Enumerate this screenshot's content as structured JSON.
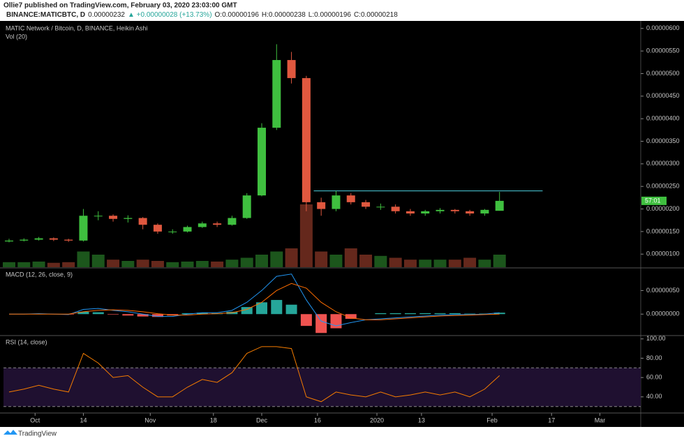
{
  "header": {
    "author_line": "Ollie7 published on TradingView.com, February 03, 2020 23:03:00 GMT",
    "symbol": "BINANCE:MATICBTC, D",
    "last": "0.00000232",
    "change": "▲ +0.00000028 (+13.73%)",
    "ohlc": [
      "O:0.00000196",
      "H:0.00000238",
      "L:0.00000196",
      "C:0.00000218"
    ]
  },
  "footer": {
    "brand": "TradingView"
  },
  "chart_data": [
    {
      "type": "candlestick",
      "title": "MATIC Network / Bitcoin, D, BINANCE, Heikin Ashi",
      "up_color": "#3fbf3f",
      "down_color": "#e0583f",
      "open": [
        1.28e-06,
        1.3e-06,
        1.32e-06,
        1.35e-06,
        1.32e-06,
        1.3e-06,
        1.85e-06,
        1.85e-06,
        1.78e-06,
        1.8e-06,
        1.65e-06,
        1.5e-06,
        1.5e-06,
        1.6e-06,
        1.68e-06,
        1.65e-06,
        1.8e-06,
        2.3e-06,
        3.8e-06,
        5.3e-06,
        4.9e-06,
        2.15e-06,
        2e-06,
        2.3e-06,
        2.15e-06,
        2.05e-06,
        2.05e-06,
        1.95e-06,
        1.9e-06,
        1.95e-06,
        1.98e-06,
        1.95e-06,
        1.9e-06,
        1.96e-06
      ],
      "high": [
        1.34e-06,
        1.35e-06,
        1.38e-06,
        1.37e-06,
        1.34e-06,
        2e-06,
        1.95e-06,
        1.88e-06,
        1.86e-06,
        1.82e-06,
        1.68e-06,
        1.55e-06,
        1.63e-06,
        1.72e-06,
        1.72e-06,
        1.85e-06,
        2.35e-06,
        3.9e-06,
        5.65e-06,
        5.48e-06,
        4.95e-06,
        2.25e-06,
        2.4e-06,
        2.35e-06,
        2.2e-06,
        2.12e-06,
        2.1e-06,
        2e-06,
        1.98e-06,
        2.02e-06,
        2e-06,
        1.98e-06,
        2e-06,
        2.38e-06
      ],
      "low": [
        1.26e-06,
        1.28e-06,
        1.3e-06,
        1.29e-06,
        1.27e-06,
        1.28e-06,
        1.75e-06,
        1.72e-06,
        1.7e-06,
        1.55e-06,
        1.45e-06,
        1.45e-06,
        1.48e-06,
        1.58e-06,
        1.6e-06,
        1.63e-06,
        1.78e-06,
        2.28e-06,
        3.75e-06,
        4.78e-06,
        1.95e-06,
        1.85e-06,
        1.95e-06,
        2.1e-06,
        2e-06,
        1.98e-06,
        1.9e-06,
        1.85e-06,
        1.85e-06,
        1.9e-06,
        1.9e-06,
        1.85e-06,
        1.85e-06,
        1.96e-06
      ],
      "close": [
        1.3e-06,
        1.32e-06,
        1.35e-06,
        1.32e-06,
        1.3e-06,
        1.85e-06,
        1.85e-06,
        1.78e-06,
        1.8e-06,
        1.65e-06,
        1.5e-06,
        1.5e-06,
        1.6e-06,
        1.68e-06,
        1.65e-06,
        1.8e-06,
        2.3e-06,
        3.8e-06,
        5.3e-06,
        4.9e-06,
        2.15e-06,
        2e-06,
        2.3e-06,
        2.15e-06,
        2.05e-06,
        2.05e-06,
        1.95e-06,
        1.9e-06,
        1.95e-06,
        1.98e-06,
        1.95e-06,
        1.9e-06,
        1.98e-06,
        2.18e-06
      ],
      "volume": {
        "name": "Vol (20)",
        "ylim": [
          0,
          100
        ],
        "values": [
          8,
          8,
          9,
          7,
          8,
          25,
          20,
          12,
          10,
          12,
          10,
          8,
          9,
          10,
          9,
          12,
          15,
          20,
          25,
          30,
          100,
          25,
          20,
          30,
          20,
          18,
          15,
          12,
          12,
          12,
          12,
          15,
          12,
          20
        ]
      },
      "hline": {
        "value": 2.4e-06,
        "from": 20.5,
        "to": 35.9,
        "color": "#4dd0e1"
      },
      "countdown": "57:01",
      "xlim": [
        -0.375,
        42.5
      ],
      "ylim": [
        7.1e-07,
        6.12e-06
      ],
      "yticks": [
        {
          "value": 1e-06,
          "label": "0.00000100"
        },
        {
          "value": 1.5e-06,
          "label": "0.00000150"
        },
        {
          "value": 2e-06,
          "label": "0.00000200"
        },
        {
          "value": 2.5e-06,
          "label": "0.00000250"
        },
        {
          "value": 3e-06,
          "label": "0.00000300"
        },
        {
          "value": 3.5e-06,
          "label": "0.00000350"
        },
        {
          "value": 4e-06,
          "label": "0.00000400"
        },
        {
          "value": 4.5e-06,
          "label": "0.00000450"
        },
        {
          "value": 5e-06,
          "label": "0.00000500"
        },
        {
          "value": 5.5e-06,
          "label": "0.00000550"
        },
        {
          "value": 6e-06,
          "label": "0.00000600"
        }
      ]
    },
    {
      "type": "macd",
      "title": "MACD (12, 26, close, 9)",
      "series": [
        {
          "name": "MACD",
          "color": "#2196f3",
          "values": [
            0,
            0,
            1e-08,
            0,
            -1e-08,
            1e-07,
            1.2e-07,
            8e-08,
            5e-08,
            0,
            -5e-08,
            -5e-08,
            0,
            3e-08,
            3e-08,
            8e-08,
            2.5e-07,
            5e-07,
            8e-07,
            8.5e-07,
            3e-07,
            -1.5e-07,
            -2.5e-07,
            -1.8e-07,
            -1.2e-07,
            -1e-07,
            -8e-08,
            -6e-08,
            -4e-08,
            -2e-08,
            -1e-08,
            -1e-08,
            0,
            3e-08
          ]
        },
        {
          "name": "Signal",
          "color": "#ff6d00",
          "values": [
            0,
            0,
            0,
            0,
            0,
            5e-08,
            8e-08,
            9e-08,
            8e-08,
            5e-08,
            1e-08,
            -2e-08,
            -2e-08,
            0,
            1e-08,
            3e-08,
            1e-07,
            2.5e-07,
            5e-07,
            6.5e-07,
            5.5e-07,
            2.5e-07,
            5e-08,
            -8e-08,
            -1.2e-07,
            -1.2e-07,
            -1e-07,
            -8e-08,
            -6e-08,
            -4e-08,
            -3e-08,
            -2e-08,
            -1e-08,
            0
          ]
        }
      ],
      "histogram": {
        "up_color": "#26a69a",
        "down_color": "#ef5350",
        "values": [
          0,
          0,
          1e-08,
          0,
          -1e-08,
          5e-08,
          4e-08,
          -1e-08,
          -3e-08,
          -5e-08,
          -6e-08,
          -3e-08,
          2e-08,
          3e-08,
          2e-08,
          5e-08,
          1.5e-07,
          2.5e-07,
          3e-07,
          2e-07,
          -2.5e-07,
          -4e-07,
          -3e-07,
          -1e-07,
          0,
          2e-08,
          2e-08,
          2e-08,
          2e-08,
          2e-08,
          2e-08,
          1e-08,
          1e-08,
          3e-08
        ]
      },
      "xlim": [
        -0.375,
        42.5
      ],
      "ylim": [
        -4.4e-07,
        9.5e-07
      ],
      "yticks": [
        {
          "value": 0,
          "label": "0.00000000"
        },
        {
          "value": 5e-07,
          "label": "0.00000050"
        }
      ]
    },
    {
      "type": "rsi",
      "title": "RSI (14, close)",
      "color": "#f57c00",
      "values": [
        45,
        48,
        52,
        48,
        45,
        85,
        75,
        60,
        62,
        50,
        40,
        40,
        50,
        58,
        55,
        65,
        85,
        92,
        92,
        90,
        40,
        35,
        45,
        42,
        40,
        45,
        40,
        42,
        45,
        42,
        45,
        40,
        48,
        62
      ],
      "bands": [
        30,
        70
      ],
      "band_color": "#1f1030",
      "xlim": [
        -0.375,
        42.5
      ],
      "ylim": [
        24,
        102
      ],
      "yticks": [
        {
          "value": 40,
          "label": "40.00"
        },
        {
          "value": 60,
          "label": "60.00"
        },
        {
          "value": 80,
          "label": "80.00"
        },
        {
          "value": 100,
          "label": "100.00"
        }
      ],
      "xticks": [
        {
          "value": 1.75,
          "label": "Oct"
        },
        {
          "value": 5,
          "label": "14"
        },
        {
          "value": 9.5,
          "label": "Nov"
        },
        {
          "value": 13.75,
          "label": "18"
        },
        {
          "value": 17,
          "label": "Dec"
        },
        {
          "value": 20.75,
          "label": "16"
        },
        {
          "value": 24.75,
          "label": "2020"
        },
        {
          "value": 27.75,
          "label": "13"
        },
        {
          "value": 32.5,
          "label": "Feb"
        },
        {
          "value": 36.5,
          "label": "17"
        },
        {
          "value": 39.75,
          "label": "Mar"
        }
      ]
    }
  ]
}
